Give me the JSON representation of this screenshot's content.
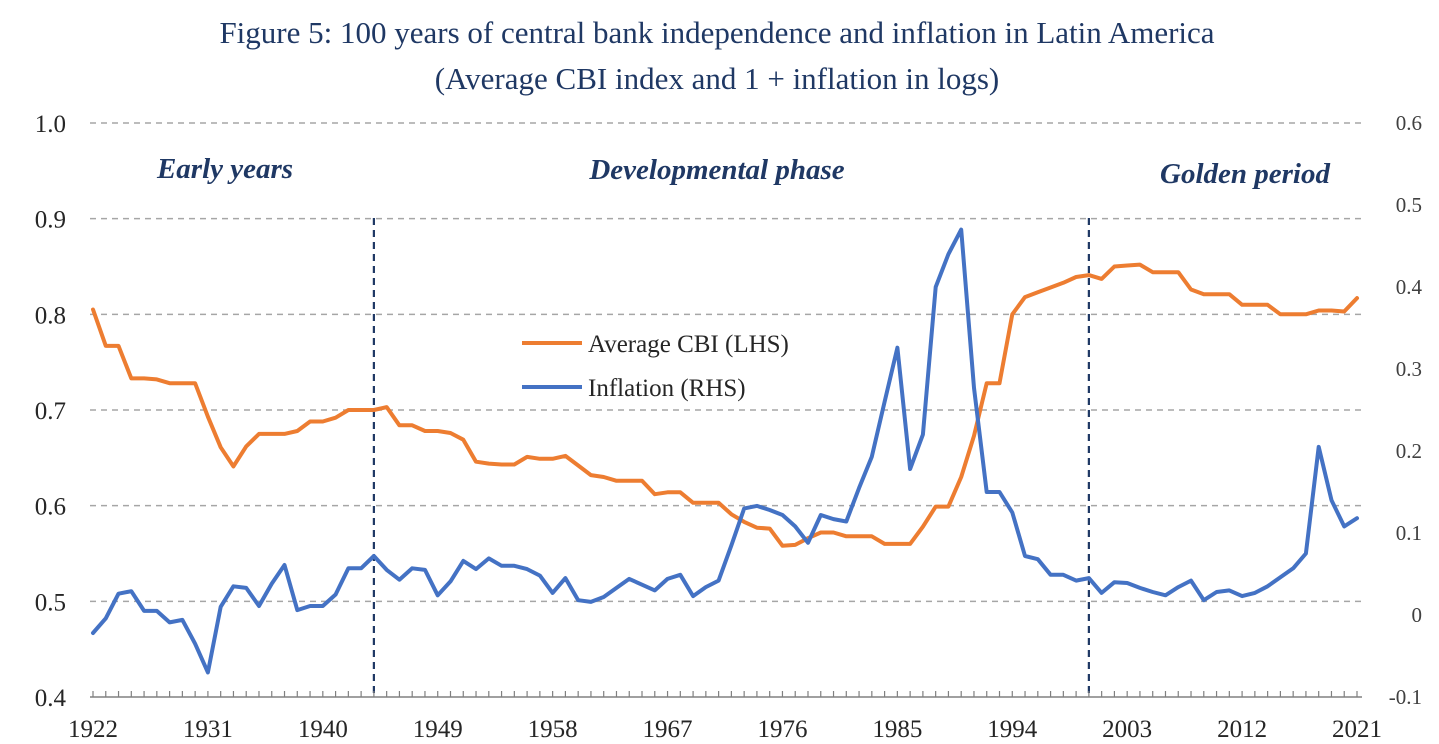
{
  "chart_data": {
    "type": "line",
    "title": "Figure 5: 100 years of central bank independence and inflation in Latin America",
    "subtitle": "(Average CBI index and 1 + inflation in logs)",
    "x": [
      1922,
      1923,
      1924,
      1925,
      1926,
      1927,
      1928,
      1929,
      1930,
      1931,
      1932,
      1933,
      1934,
      1935,
      1936,
      1937,
      1938,
      1939,
      1940,
      1941,
      1942,
      1943,
      1944,
      1945,
      1946,
      1947,
      1948,
      1949,
      1950,
      1951,
      1952,
      1953,
      1954,
      1955,
      1956,
      1957,
      1958,
      1959,
      1960,
      1961,
      1962,
      1963,
      1964,
      1965,
      1966,
      1967,
      1968,
      1969,
      1970,
      1971,
      1972,
      1973,
      1974,
      1975,
      1976,
      1977,
      1978,
      1979,
      1980,
      1981,
      1982,
      1983,
      1984,
      1985,
      1986,
      1987,
      1988,
      1989,
      1990,
      1991,
      1992,
      1993,
      1994,
      1995,
      1996,
      1997,
      1998,
      1999,
      2000,
      2001,
      2002,
      2003,
      2004,
      2005,
      2006,
      2007,
      2008,
      2009,
      2010,
      2011,
      2012,
      2013,
      2014,
      2015,
      2016,
      2017,
      2018,
      2019,
      2020,
      2021
    ],
    "x_ticks": [
      "1922",
      "1931",
      "1940",
      "1949",
      "1958",
      "1967",
      "1976",
      "1985",
      "1994",
      "2003",
      "2012",
      "2021"
    ],
    "series": [
      {
        "name": "Average CBI (LHS)",
        "axis": "left",
        "color": "#ed7d31",
        "values": [
          0.805,
          0.767,
          0.767,
          0.733,
          0.733,
          0.732,
          0.728,
          0.728,
          0.728,
          0.693,
          0.661,
          0.641,
          0.662,
          0.675,
          0.675,
          0.675,
          0.678,
          0.688,
          0.688,
          0.692,
          0.7,
          0.7,
          0.7,
          0.703,
          0.684,
          0.684,
          0.678,
          0.678,
          0.676,
          0.669,
          0.646,
          0.644,
          0.643,
          0.643,
          0.651,
          0.649,
          0.649,
          0.652,
          0.642,
          0.632,
          0.63,
          0.626,
          0.626,
          0.626,
          0.612,
          0.614,
          0.614,
          0.603,
          0.603,
          0.603,
          0.591,
          0.583,
          0.577,
          0.576,
          0.558,
          0.559,
          0.566,
          0.572,
          0.572,
          0.568,
          0.568,
          0.568,
          0.56,
          0.56,
          0.56,
          0.578,
          0.599,
          0.599,
          0.63,
          0.673,
          0.728,
          0.728,
          0.8,
          0.818,
          0.823,
          0.828,
          0.833,
          0.839,
          0.841,
          0.837,
          0.85,
          0.851,
          0.852,
          0.844,
          0.844,
          0.844,
          0.826,
          0.821,
          0.821,
          0.821,
          0.81,
          0.81,
          0.81,
          0.8,
          0.8,
          0.8,
          0.804,
          0.804,
          0.803,
          0.817
        ]
      },
      {
        "name": "Inflation (RHS)",
        "axis": "right",
        "color": "#4472c4",
        "values": [
          -0.022,
          -0.004,
          0.026,
          0.029,
          0.005,
          0.005,
          -0.009,
          -0.006,
          -0.035,
          -0.07,
          0.01,
          0.035,
          0.033,
          0.011,
          0.038,
          0.061,
          0.006,
          0.011,
          0.011,
          0.025,
          0.057,
          0.057,
          0.072,
          0.055,
          0.043,
          0.057,
          0.055,
          0.024,
          0.041,
          0.066,
          0.056,
          0.069,
          0.06,
          0.06,
          0.056,
          0.048,
          0.027,
          0.045,
          0.018,
          0.016,
          0.022,
          0.033,
          0.044,
          0.037,
          0.03,
          0.044,
          0.049,
          0.023,
          0.034,
          0.042,
          0.085,
          0.13,
          0.133,
          0.128,
          0.122,
          0.108,
          0.088,
          0.122,
          0.117,
          0.114,
          0.155,
          0.193,
          0.26,
          0.326,
          0.178,
          0.22,
          0.4,
          0.44,
          0.47,
          0.277,
          0.15,
          0.15,
          0.125,
          0.072,
          0.068,
          0.049,
          0.049,
          0.042,
          0.045,
          0.027,
          0.04,
          0.039,
          0.033,
          0.028,
          0.024,
          0.034,
          0.042,
          0.018,
          0.028,
          0.03,
          0.023,
          0.027,
          0.035,
          0.046,
          0.057,
          0.075,
          0.205,
          0.14,
          0.108,
          0.118
        ]
      }
    ],
    "y_left": {
      "min": 0.4,
      "max": 1.0,
      "ticks": [
        "0.4",
        "0.5",
        "0.6",
        "0.7",
        "0.8",
        "0.9",
        "1.0"
      ]
    },
    "y_right": {
      "min": -0.1,
      "max": 0.6,
      "ticks": [
        "-0.1",
        "0",
        "0.1",
        "0.2",
        "0.3",
        "0.4",
        "0.5",
        "0.6"
      ]
    },
    "grid": "horizontal dashed",
    "phase_dividers": [
      1944,
      2000
    ],
    "phases": [
      "Early years",
      "Developmental phase",
      "Golden period"
    ],
    "legend_placement": "center"
  }
}
